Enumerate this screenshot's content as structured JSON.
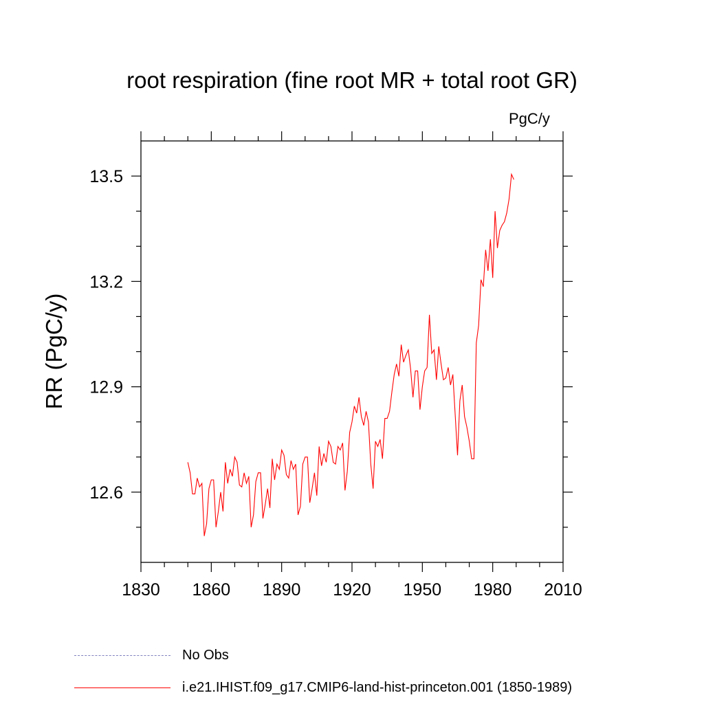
{
  "chart_data": {
    "type": "line",
    "title": "root respiration (fine root MR + total root GR)",
    "units": "PgC/y",
    "ylabel": "RR  (PgC/y)",
    "xlabel": "",
    "xlim": [
      1830,
      2010
    ],
    "ylim": [
      12.4,
      13.6
    ],
    "xticks": [
      1830,
      1860,
      1890,
      1920,
      1950,
      1980,
      2010
    ],
    "yticks": [
      12.6,
      12.9,
      13.2,
      13.5
    ],
    "grid": false,
    "legend_position": "bottom",
    "series": [
      {
        "name": "i.e21.IHIST.f09_g17.CMIP6-land-hist-princeton.001 (1850-1989)",
        "color": "#ff0000",
        "style": "solid",
        "x_start": 1850,
        "x_step": 1,
        "values": [
          12.685,
          12.655,
          12.595,
          12.595,
          12.64,
          12.615,
          12.625,
          12.475,
          12.51,
          12.61,
          12.635,
          12.635,
          12.5,
          12.545,
          12.6,
          12.545,
          12.685,
          12.625,
          12.665,
          12.645,
          12.7,
          12.685,
          12.62,
          12.615,
          12.655,
          12.625,
          12.645,
          12.5,
          12.535,
          12.63,
          12.655,
          12.655,
          12.525,
          12.565,
          12.61,
          12.555,
          12.695,
          12.635,
          12.68,
          12.665,
          12.72,
          12.705,
          12.65,
          12.64,
          12.69,
          12.665,
          12.68,
          12.535,
          12.56,
          12.68,
          12.7,
          12.7,
          12.57,
          12.61,
          12.655,
          12.59,
          12.73,
          12.675,
          12.71,
          12.685,
          12.745,
          12.73,
          12.685,
          12.68,
          12.73,
          12.72,
          12.74,
          12.605,
          12.66,
          12.77,
          12.8,
          12.845,
          12.825,
          12.87,
          12.815,
          12.79,
          12.83,
          12.8,
          12.68,
          12.61,
          12.745,
          12.73,
          12.75,
          12.695,
          12.81,
          12.81,
          12.83,
          12.885,
          12.935,
          12.965,
          12.93,
          13.02,
          12.97,
          12.99,
          13.005,
          12.95,
          12.87,
          12.945,
          12.945,
          12.835,
          12.9,
          12.945,
          12.955,
          13.105,
          12.995,
          13.005,
          12.92,
          13.015,
          12.965,
          12.92,
          12.925,
          12.955,
          12.905,
          12.935,
          12.82,
          12.705,
          12.86,
          12.905,
          12.815,
          12.785,
          12.745,
          12.695,
          12.695,
          13.025,
          13.075,
          13.205,
          13.185,
          13.29,
          13.23,
          13.32,
          13.21,
          13.4,
          13.295,
          13.345,
          13.36,
          13.37,
          13.395,
          13.435,
          13.505,
          13.49
        ]
      },
      {
        "name": "No Obs",
        "color": "#8080c0",
        "style": "dashed",
        "values": []
      }
    ]
  }
}
